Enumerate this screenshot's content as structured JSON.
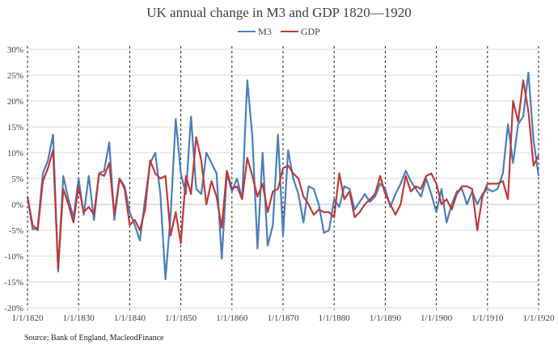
{
  "title": "UK annual change in M3 and GDP 1820—1920",
  "source": "Source: Bank of England, MacleodFinance",
  "colors": {
    "m3": "#4a7ebb",
    "gdp": "#be3a3a",
    "grid": "#d9d9d9",
    "zero": "#c0c0c0"
  },
  "chart_data": {
    "type": "line",
    "title": "UK annual change in M3 and GDP 1820—1920",
    "xlabel": "",
    "ylabel": "",
    "ylim": [
      -20,
      30
    ],
    "y_ticks": [
      -20,
      -15,
      -10,
      -5,
      0,
      5,
      10,
      15,
      20,
      25,
      30
    ],
    "y_tick_labels": [
      "-20%",
      "-15%",
      "-10%",
      "-5%",
      "0%",
      "5%",
      "10%",
      "15%",
      "20%",
      "25%",
      "30%"
    ],
    "x_range": [
      1820,
      1920
    ],
    "x_ticks": [
      1820,
      1830,
      1840,
      1850,
      1860,
      1870,
      1880,
      1890,
      1900,
      1910,
      1920
    ],
    "x_tick_labels": [
      "1/1/1820",
      "1/1/1830",
      "1/1/1840",
      "1/1/1850",
      "1/1/1860",
      "1/1/1870",
      "1/1/1880",
      "1/1/1890",
      "1/1/1900",
      "1/1/1910",
      "1/1/1920"
    ],
    "vertical_dashed_lines": [
      1820,
      1830,
      1840,
      1850,
      1860,
      1870,
      1880,
      1890,
      1900,
      1910,
      1920
    ],
    "legend_position": "top-center",
    "grid": true,
    "series": [
      {
        "name": "M3",
        "x": [
          1820,
          1821,
          1822,
          1823,
          1824,
          1825,
          1826,
          1827,
          1828,
          1829,
          1830,
          1831,
          1832,
          1833,
          1834,
          1835,
          1836,
          1837,
          1838,
          1839,
          1840,
          1841,
          1842,
          1843,
          1844,
          1845,
          1846,
          1847,
          1848,
          1849,
          1850,
          1851,
          1852,
          1853,
          1854,
          1855,
          1856,
          1857,
          1858,
          1859,
          1860,
          1861,
          1862,
          1863,
          1864,
          1865,
          1866,
          1867,
          1868,
          1869,
          1870,
          1871,
          1872,
          1873,
          1874,
          1875,
          1876,
          1877,
          1878,
          1879,
          1880,
          1881,
          1882,
          1883,
          1884,
          1885,
          1886,
          1887,
          1888,
          1889,
          1890,
          1891,
          1892,
          1893,
          1894,
          1895,
          1896,
          1897,
          1898,
          1899,
          1900,
          1901,
          1902,
          1903,
          1904,
          1905,
          1906,
          1907,
          1908,
          1909,
          1910,
          1911,
          1912,
          1913,
          1914,
          1915,
          1916,
          1917,
          1918,
          1919,
          1920
        ],
        "values": [
          1.5,
          -4.8,
          -4.5,
          6.0,
          8.5,
          13.5,
          -13.0,
          5.5,
          1.0,
          -2.5,
          5.0,
          -2.0,
          5.5,
          -3.0,
          6.0,
          6.5,
          12.0,
          -3.0,
          5.0,
          3.5,
          -1.5,
          -4.0,
          -7.0,
          1.0,
          8.0,
          10.0,
          2.0,
          -14.5,
          -2.0,
          16.5,
          6.0,
          2.0,
          17.0,
          3.0,
          2.0,
          10.0,
          8.0,
          6.0,
          -10.5,
          6.0,
          2.5,
          5.0,
          1.0,
          24.0,
          13.0,
          -8.5,
          10.0,
          -8.0,
          -4.0,
          13.5,
          -6.0,
          10.5,
          5.0,
          2.0,
          -3.5,
          3.5,
          3.0,
          0.0,
          -5.5,
          -5.0,
          1.0,
          -0.5,
          3.5,
          3.0,
          -1.0,
          0.5,
          2.0,
          0.5,
          1.5,
          4.0,
          3.0,
          -0.5,
          2.0,
          4.0,
          6.5,
          4.5,
          3.0,
          1.5,
          5.0,
          2.0,
          -1.5,
          3.0,
          -3.5,
          0.0,
          2.5,
          3.0,
          0.0,
          2.5,
          0.0,
          2.0,
          3.0,
          2.5,
          3.0,
          6.0,
          15.5,
          8.0,
          15.5,
          17.0,
          25.5,
          12.5,
          5.5
        ]
      },
      {
        "name": "GDP",
        "x": [
          1820,
          1821,
          1822,
          1823,
          1824,
          1825,
          1826,
          1827,
          1828,
          1829,
          1830,
          1831,
          1832,
          1833,
          1834,
          1835,
          1836,
          1837,
          1838,
          1839,
          1840,
          1841,
          1842,
          1843,
          1844,
          1845,
          1846,
          1847,
          1848,
          1849,
          1850,
          1851,
          1852,
          1853,
          1854,
          1855,
          1856,
          1857,
          1858,
          1859,
          1860,
          1861,
          1862,
          1863,
          1864,
          1865,
          1866,
          1867,
          1868,
          1869,
          1870,
          1871,
          1872,
          1873,
          1874,
          1875,
          1876,
          1877,
          1878,
          1879,
          1880,
          1881,
          1882,
          1883,
          1884,
          1885,
          1886,
          1887,
          1888,
          1889,
          1890,
          1891,
          1892,
          1893,
          1894,
          1895,
          1896,
          1897,
          1898,
          1899,
          1900,
          1901,
          1902,
          1903,
          1904,
          1905,
          1906,
          1907,
          1908,
          1909,
          1910,
          1911,
          1912,
          1913,
          1914,
          1915,
          1916,
          1917,
          1918,
          1919,
          1920
        ],
        "values": [
          1.5,
          -4.0,
          -5.0,
          4.5,
          7.0,
          10.5,
          -12.5,
          3.0,
          0.0,
          -3.5,
          3.5,
          -1.5,
          -0.5,
          -2.0,
          6.0,
          5.5,
          8.0,
          -2.0,
          5.0,
          3.0,
          -4.0,
          -3.0,
          -5.0,
          -1.0,
          8.5,
          6.0,
          5.0,
          5.5,
          -6.0,
          -1.5,
          -7.5,
          5.5,
          2.0,
          13.0,
          8.5,
          0.0,
          4.5,
          1.5,
          -4.5,
          6.5,
          3.0,
          3.5,
          1.0,
          9.0,
          5.5,
          1.5,
          4.0,
          -1.5,
          2.5,
          3.0,
          7.0,
          7.5,
          6.0,
          5.0,
          1.5,
          0.0,
          -2.0,
          -1.0,
          -1.5,
          -1.5,
          -2.5,
          6.0,
          1.0,
          2.5,
          -2.5,
          -1.5,
          0.0,
          1.0,
          2.0,
          5.5,
          2.0,
          0.0,
          -2.0,
          0.0,
          5.5,
          2.5,
          3.5,
          3.0,
          5.5,
          6.0,
          4.0,
          0.0,
          1.0,
          -1.0,
          2.0,
          3.5,
          3.5,
          3.0,
          -5.0,
          1.5,
          4.0,
          4.0,
          4.0,
          4.5,
          1.0,
          20.0,
          16.0,
          24.0,
          18.0,
          7.5,
          9.5
        ]
      }
    ]
  }
}
